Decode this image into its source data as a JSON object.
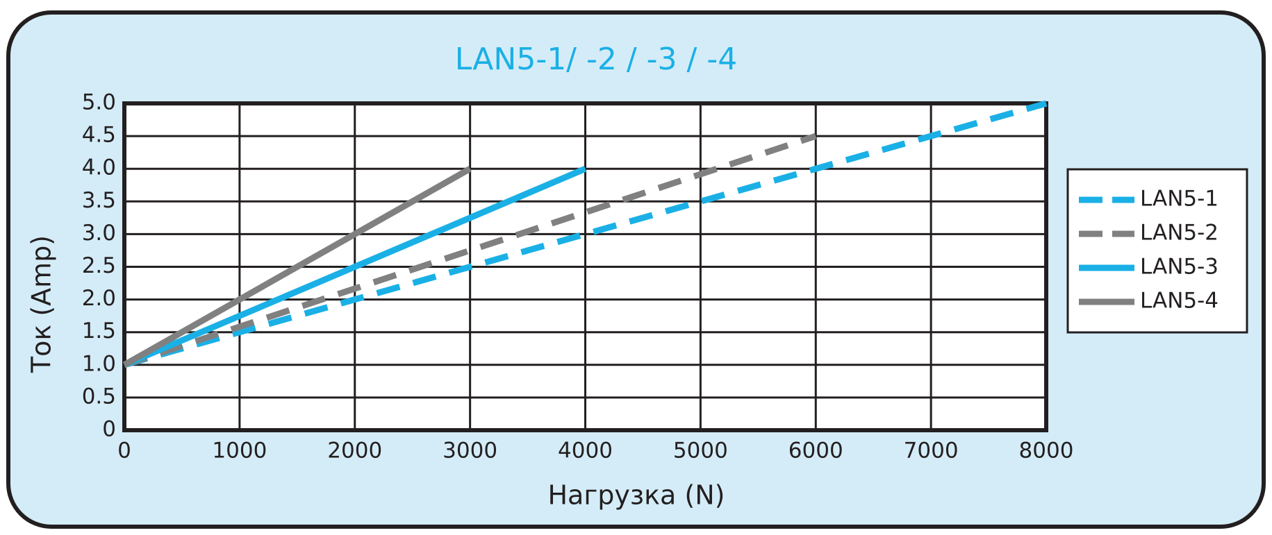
{
  "chart_data": {
    "type": "line",
    "title": "LAN5-1/ -2 / -3 / -4",
    "x_label": "Нагрузка (N)",
    "y_label": "Ток (Amp)",
    "xlim": [
      0,
      8000
    ],
    "xticks": [
      0,
      1000,
      2000,
      3000,
      4000,
      5000,
      6000,
      7000,
      8000
    ],
    "ylim": [
      0,
      5
    ],
    "yticks": [
      0,
      0.5,
      {
        "value": 1,
        "label": "1.0"
      },
      1.5,
      {
        "value": 2,
        "label": "2.0"
      },
      2.5,
      {
        "value": 3,
        "label": "3.0"
      },
      3.5,
      {
        "value": 4,
        "label": "4.0"
      },
      4.5,
      {
        "value": 5,
        "label": "5.0"
      }
    ],
    "grid": true,
    "legend": "right",
    "series": [
      {
        "name": "LAN5-1",
        "color": "#1ab0e6",
        "dashed": true,
        "x": [
          0,
          8000
        ],
        "values": [
          1,
          5
        ]
      },
      {
        "name": "LAN5-2",
        "color": "#808080",
        "dashed": true,
        "x": [
          0,
          6000
        ],
        "values": [
          1,
          4.5
        ]
      },
      {
        "name": "LAN5-3",
        "color": "#1ab0e6",
        "dashed": false,
        "x": [
          0,
          4000
        ],
        "values": [
          1,
          4
        ]
      },
      {
        "name": "LAN5-4",
        "color": "#808080",
        "dashed": false,
        "x": [
          0,
          3000
        ],
        "values": [
          1,
          4
        ]
      }
    ]
  }
}
